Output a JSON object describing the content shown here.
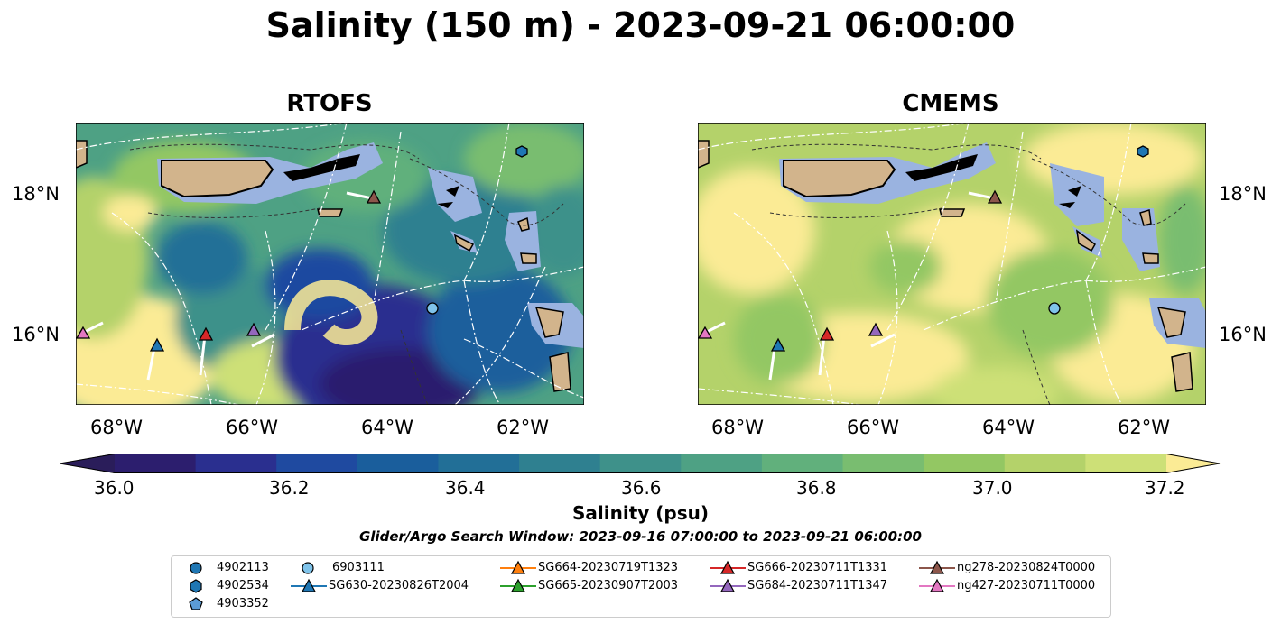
{
  "title": "Salinity (150 m) - 2023-09-21 06:00:00",
  "panels": [
    {
      "name": "RTOFS",
      "lon_labels": [
        "68°W",
        "66°W",
        "64°W",
        "62°W"
      ],
      "lat_labels": [
        "18°N",
        "16°N"
      ]
    },
    {
      "name": "CMEMS",
      "lon_labels": [
        "68°W",
        "66°W",
        "64°W",
        "62°W"
      ],
      "lat_labels": [
        "18°N",
        "16°N"
      ]
    }
  ],
  "colorbar": {
    "label": "Salinity (psu)",
    "ticks": [
      "36.0",
      "36.2",
      "36.4",
      "36.6",
      "36.8",
      "37.0",
      "37.2"
    ],
    "colors": [
      "#2c1e6e",
      "#2a2f8f",
      "#1f4aa0",
      "#1a5e9c",
      "#226f97",
      "#2f8090",
      "#3e918a",
      "#4ea184",
      "#61b07c",
      "#79bd70",
      "#93c763",
      "#b4d26a",
      "#cde077"
    ],
    "under_color": "#2a1d5a",
    "over_color": "#fbeb95"
  },
  "search_window": "Glider/Argo Search Window: 2023-09-16 07:00:00 to 2023-09-21 06:00:00",
  "legend": [
    {
      "label": "4902113",
      "marker": "circle",
      "color": "#1f77b4"
    },
    {
      "label": "4902534",
      "marker": "hexagon",
      "color": "#1f77b4"
    },
    {
      "label": "4903352",
      "marker": "pentagon",
      "color": "#5b9bd5"
    },
    {
      "label": "6903111",
      "marker": "circle",
      "color": "#7fc3ea"
    },
    {
      "label": "SG630-20230826T2004",
      "marker": "triangle",
      "color": "#1f77b4"
    },
    {
      "label": "SG664-20230719T1323",
      "marker": "triangle",
      "color": "#ff7f0e"
    },
    {
      "label": "SG665-20230907T2003",
      "marker": "triangle",
      "color": "#2ca02c"
    },
    {
      "label": "SG666-20230711T1331",
      "marker": "triangle",
      "color": "#d62728"
    },
    {
      "label": "SG684-20230711T1347",
      "marker": "triangle",
      "color": "#9467bd"
    },
    {
      "label": "ng278-20230824T0000",
      "marker": "triangle",
      "color": "#8c564b"
    },
    {
      "label": "ng427-20230711T0000",
      "marker": "triangle",
      "color": "#e377c2"
    }
  ],
  "colors": {
    "land": "#d2b48c",
    "shelf": "#9ab3e0"
  }
}
